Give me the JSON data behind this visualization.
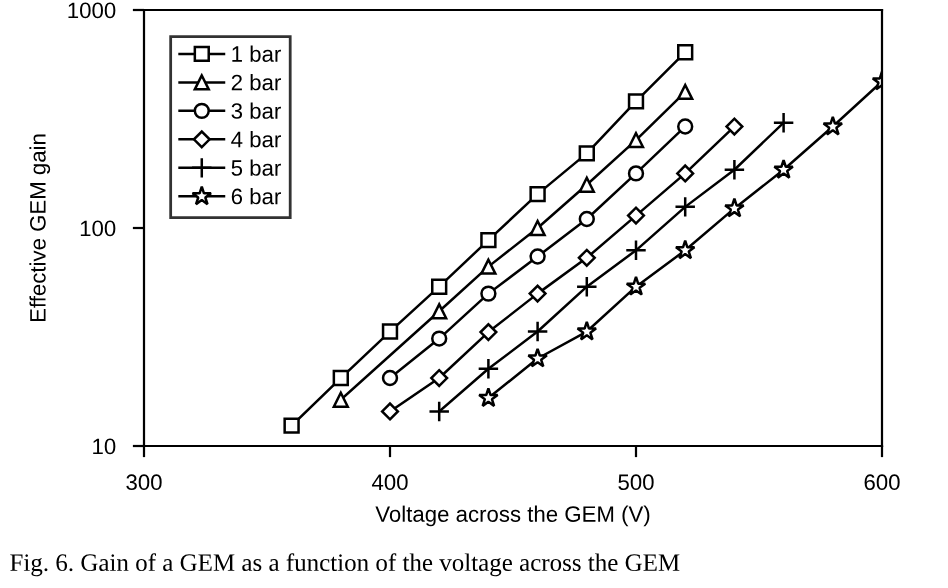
{
  "chart_data": {
    "type": "line",
    "xlabel": "Voltage across the GEM (V)",
    "ylabel": "Effective GEM gain",
    "log": "y",
    "xlim": [
      300,
      600
    ],
    "ylim": [
      10,
      1000
    ],
    "xticks": [
      300,
      400,
      500,
      600
    ],
    "yticks": [
      10,
      100,
      1000
    ],
    "grid": false,
    "legend": "top left",
    "line_style": "solid",
    "annotations": [
      "Fig. 6. Gain of a GEM as a function of the voltage across the GEM"
    ],
    "series": [
      {
        "name": "1 bar",
        "color": "#000000",
        "marker": "square",
        "x": [
          360,
          380,
          400,
          420,
          440,
          460,
          480,
          500,
          520
        ],
        "values": [
          12.4,
          20.5,
          33.5,
          53.8,
          88,
          143,
          220,
          381,
          640
        ]
      },
      {
        "name": "2 bar",
        "color": "#000000",
        "marker": "triangle",
        "x": [
          380,
          420,
          440,
          460,
          480,
          500,
          520
        ],
        "values": [
          16.3,
          41.5,
          66.5,
          100,
          158,
          253,
          421
        ]
      },
      {
        "name": "3 bar",
        "color": "#000000",
        "marker": "circle",
        "x": [
          400,
          420,
          440,
          460,
          480,
          500,
          520
        ],
        "values": [
          20.5,
          31.1,
          50,
          74,
          110,
          178,
          292
        ]
      },
      {
        "name": "4 bar",
        "color": "#000000",
        "marker": "diamond",
        "x": [
          400,
          420,
          440,
          460,
          480,
          500,
          520,
          540
        ],
        "values": [
          14.4,
          20.5,
          33.3,
          50,
          73,
          114,
          178,
          292
        ]
      },
      {
        "name": "5 bar",
        "color": "#000000",
        "marker": "cross",
        "x": [
          420,
          440,
          460,
          480,
          500,
          520,
          540,
          560
        ],
        "values": [
          14.4,
          22.6,
          33.5,
          53.8,
          79,
          125,
          185,
          304
        ]
      },
      {
        "name": "6 bar",
        "color": "#000000",
        "marker": "star",
        "x": [
          440,
          460,
          480,
          500,
          520,
          540,
          560,
          580,
          600
        ],
        "values": [
          16.6,
          25.2,
          33.5,
          53.8,
          79,
          123,
          185,
          292,
          470
        ]
      }
    ]
  }
}
